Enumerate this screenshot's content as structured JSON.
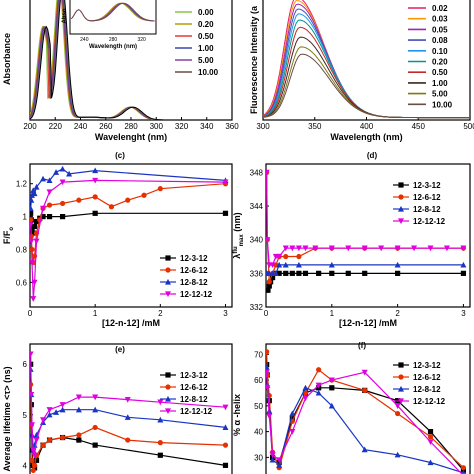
{
  "chart_data": [
    {
      "id": "a",
      "type": "line",
      "xlabel": "Wavelenght (nm)",
      "ylabel": "Absorbance",
      "xlim": [
        200,
        360
      ],
      "xticks": [
        200,
        220,
        240,
        260,
        280,
        300,
        320,
        340,
        360
      ],
      "ylim": [
        0,
        1.25
      ],
      "legend": [
        "0.00",
        "0.20",
        "0.50",
        "1.00",
        "5.00",
        "10.00"
      ],
      "legend_colors": [
        "#8bc34a",
        "#b0a000",
        "#e53935",
        "#3949ab",
        "#8e3fa0",
        "#6d4c41"
      ],
      "inset": {
        "ylabel": "Abso",
        "xlabel": "Wavelength (nm)",
        "xticks": [
          240,
          280,
          320
        ]
      },
      "series": [
        {
          "color": "#8bc34a",
          "shift": 0.0,
          "scale": 1.0
        },
        {
          "color": "#b0a000",
          "shift": 0.4,
          "scale": 1.0
        },
        {
          "color": "#e53935",
          "shift": 0.8,
          "scale": 1.0
        },
        {
          "color": "#3949ab",
          "shift": 1.2,
          "scale": 1.0
        },
        {
          "color": "#8e3fa0",
          "shift": 1.6,
          "scale": 1.0
        },
        {
          "color": "#6d4c41",
          "shift": 2.0,
          "scale": 1.0
        },
        {
          "color": "#607d8b",
          "shift": 2.4,
          "scale": 1.0
        },
        {
          "color": "#000000",
          "shift": 2.8,
          "scale": 1.0
        }
      ]
    },
    {
      "id": "b",
      "type": "line",
      "xlabel": "Wavelength (nm)",
      "ylabel": "Fluorescence Intensity (a",
      "xlim": [
        300,
        500
      ],
      "xticks": [
        300,
        350,
        400,
        450,
        500
      ],
      "ylim": [
        0,
        1.0
      ],
      "legend": [
        "0.02",
        "0.03",
        "0.05",
        "0.08",
        "0.10",
        "0.20",
        "0.50",
        "1.00",
        "5.00",
        "10.00"
      ],
      "legend_colors": [
        "#e91e63",
        "#ff9800",
        "#9c27b0",
        "#3f51b5",
        "#2196f3",
        "#009688",
        "#c62828",
        "#3e2723",
        "#827717",
        "#6d4c41"
      ],
      "series": [
        {
          "color": "#e91e63",
          "peak": 0.99
        },
        {
          "color": "#ff9800",
          "peak": 0.96
        },
        {
          "color": "#9c27b0",
          "peak": 0.93
        },
        {
          "color": "#3f51b5",
          "peak": 0.89
        },
        {
          "color": "#2196f3",
          "peak": 0.85
        },
        {
          "color": "#009688",
          "peak": 0.8
        },
        {
          "color": "#c62828",
          "peak": 0.74
        },
        {
          "color": "#3e2723",
          "peak": 0.66
        },
        {
          "color": "#827717",
          "peak": 0.58
        },
        {
          "color": "#6d4c41",
          "peak": 0.52
        }
      ]
    },
    {
      "id": "c",
      "type": "line",
      "tag": "(c)",
      "xlabel": "[12-n-12] /mM",
      "ylabel": "F/F",
      "ylabel_sub": "o",
      "xlim": [
        0,
        3.1
      ],
      "xticks": [
        0,
        1,
        2,
        3
      ],
      "ylim": [
        0.45,
        1.32
      ],
      "yticks": [
        0.6,
        0.8,
        1.0,
        1.2
      ],
      "series": [
        {
          "name": "12-3-12",
          "color": "#000000",
          "marker": "square",
          "x": [
            0.01,
            0.02,
            0.03,
            0.05,
            0.07,
            0.1,
            0.15,
            0.2,
            0.3,
            0.5,
            1.0,
            3.0
          ],
          "y": [
            1.02,
            0.98,
            0.93,
            0.9,
            0.94,
            0.97,
            0.99,
            1.0,
            1.0,
            1.0,
            1.02,
            1.02
          ]
        },
        {
          "name": "12-6-12",
          "color": "#e53000",
          "marker": "circle",
          "x": [
            0.01,
            0.02,
            0.03,
            0.05,
            0.07,
            0.1,
            0.15,
            0.2,
            0.3,
            0.5,
            0.75,
            1.0,
            1.25,
            1.5,
            1.75,
            2.0,
            3.0
          ],
          "y": [
            0.98,
            0.88,
            0.8,
            0.72,
            0.76,
            0.9,
            0.98,
            1.05,
            1.07,
            1.08,
            1.1,
            1.12,
            1.06,
            1.1,
            1.13,
            1.17,
            1.2
          ]
        },
        {
          "name": "12-8-12",
          "color": "#1a35c4",
          "marker": "triangle",
          "x": [
            0.01,
            0.02,
            0.03,
            0.05,
            0.07,
            0.1,
            0.2,
            0.3,
            0.4,
            0.5,
            0.6,
            1.0,
            3.0
          ],
          "y": [
            1.05,
            1.1,
            1.13,
            1.16,
            1.14,
            1.18,
            1.23,
            1.22,
            1.27,
            1.29,
            1.26,
            1.28,
            1.22
          ]
        },
        {
          "name": "12-12-12",
          "color": "#e000e0",
          "marker": "triangle-down",
          "x": [
            0.01,
            0.02,
            0.03,
            0.05,
            0.07,
            0.1,
            0.2,
            0.3,
            0.5,
            1.0,
            3.0
          ],
          "y": [
            0.95,
            0.85,
            0.72,
            0.5,
            0.6,
            0.85,
            1.05,
            1.15,
            1.21,
            1.22,
            1.21
          ]
        }
      ]
    },
    {
      "id": "d",
      "type": "line",
      "tag": "(d)",
      "xlabel": "[12-n-12] /mM",
      "ylabel": "λ",
      "ylabel_sup": "flu",
      "ylabel_sub": "max",
      "ylabel_unit": "(nm)",
      "xlim": [
        0,
        3.1
      ],
      "xticks": [
        0,
        1,
        2,
        3
      ],
      "ylim": [
        332,
        349
      ],
      "yticks": [
        332,
        336,
        340,
        344,
        348
      ],
      "series": [
        {
          "name": "12-3-12",
          "color": "#000000",
          "marker": "square",
          "x": [
            0.01,
            0.03,
            0.05,
            0.07,
            0.1,
            0.15,
            0.2,
            0.3,
            0.4,
            0.5,
            0.6,
            0.8,
            1.0,
            1.25,
            1.5,
            2.0,
            3.0
          ],
          "y": [
            334,
            334,
            334.5,
            335,
            335.5,
            336,
            336,
            336,
            336,
            336,
            336,
            336,
            336,
            336,
            336,
            336,
            336
          ]
        },
        {
          "name": "12-6-12",
          "color": "#e53000",
          "marker": "circle",
          "x": [
            0.01,
            0.02,
            0.05,
            0.1,
            0.15,
            0.2,
            0.3,
            0.5,
            0.75,
            1.0,
            1.5,
            2.0,
            3.0
          ],
          "y": [
            348,
            340,
            335,
            336,
            337,
            338,
            338,
            338,
            339,
            339,
            339,
            339,
            339
          ]
        },
        {
          "name": "12-8-12",
          "color": "#1a35c4",
          "marker": "triangle",
          "x": [
            0.01,
            0.03,
            0.05,
            0.1,
            0.15,
            0.2,
            0.3,
            0.5,
            1.0,
            2.0,
            3.0
          ],
          "y": [
            336,
            336,
            336,
            336,
            336,
            337,
            337,
            337,
            337,
            337,
            337
          ]
        },
        {
          "name": "12-12-12",
          "color": "#e000e0",
          "marker": "triangle-down",
          "x": [
            0.01,
            0.02,
            0.05,
            0.1,
            0.15,
            0.2,
            0.3,
            0.4,
            0.5,
            0.6,
            0.75,
            1.0,
            1.25,
            1.5,
            1.75,
            2.0,
            2.25,
            2.5,
            2.75,
            3.0
          ],
          "y": [
            348,
            340,
            337,
            337,
            338,
            338,
            339,
            339,
            339,
            339,
            339,
            339,
            339,
            339,
            339,
            339,
            339,
            339,
            339,
            339
          ]
        }
      ]
    },
    {
      "id": "e",
      "type": "line",
      "tag": "(e)",
      "xlabel": "",
      "ylabel": "Average lifetime <τ> (ns)",
      "xlim": [
        0,
        3.1
      ],
      "xticks": [
        0,
        1,
        2,
        3
      ],
      "ylim": [
        3.75,
        6.4
      ],
      "yticks": [
        4,
        5,
        6
      ],
      "series": [
        {
          "name": "12-3-12",
          "color": "#000000",
          "marker": "square",
          "x": [
            0.01,
            0.02,
            0.03,
            0.05,
            0.07,
            0.1,
            0.2,
            0.3,
            0.5,
            0.75,
            1.0,
            2.0,
            3.0
          ],
          "y": [
            6.0,
            5.2,
            4.3,
            4.0,
            3.95,
            4.1,
            4.4,
            4.5,
            4.55,
            4.5,
            4.4,
            4.2,
            4.0
          ]
        },
        {
          "name": "12-6-12",
          "color": "#e53000",
          "marker": "circle",
          "x": [
            0.01,
            0.02,
            0.03,
            0.05,
            0.07,
            0.1,
            0.2,
            0.3,
            0.5,
            0.75,
            1.0,
            1.5,
            2.0,
            3.0
          ],
          "y": [
            5.6,
            4.8,
            4.1,
            3.9,
            4.0,
            4.2,
            4.4,
            4.5,
            4.55,
            4.6,
            4.75,
            4.5,
            4.45,
            4.4
          ]
        },
        {
          "name": "12-8-12",
          "color": "#1a35c4",
          "marker": "triangle",
          "x": [
            0.01,
            0.02,
            0.03,
            0.05,
            0.07,
            0.1,
            0.2,
            0.3,
            0.4,
            0.5,
            0.75,
            1.0,
            1.5,
            2.0,
            3.0
          ],
          "y": [
            5.9,
            5.4,
            4.6,
            4.3,
            4.4,
            4.6,
            4.85,
            5.0,
            5.05,
            5.1,
            5.1,
            5.1,
            4.95,
            4.9,
            4.75
          ]
        },
        {
          "name": "12-12-12",
          "color": "#e000e0",
          "marker": "triangle-down",
          "x": [
            0.01,
            0.02,
            0.03,
            0.05,
            0.07,
            0.1,
            0.2,
            0.3,
            0.5,
            0.75,
            1.0,
            1.5,
            2.0,
            3.0
          ],
          "y": [
            6.2,
            5.4,
            4.8,
            4.3,
            4.2,
            4.5,
            4.9,
            5.1,
            5.2,
            5.35,
            5.35,
            5.3,
            5.25,
            5.15
          ]
        }
      ]
    },
    {
      "id": "f",
      "type": "line",
      "tag": "(f)",
      "xlabel": "",
      "ylabel": "% α -helix",
      "xlim": [
        0,
        3.1
      ],
      "xticks": [
        0,
        1,
        2,
        3
      ],
      "ylim": [
        22,
        74
      ],
      "yticks": [
        30,
        40,
        50,
        60,
        70
      ],
      "series": [
        {
          "name": "12-3-12",
          "color": "#000000",
          "marker": "square",
          "x": [
            0.01,
            0.02,
            0.05,
            0.1,
            0.2,
            0.4,
            0.6,
            0.8,
            1.0,
            1.5,
            2.0,
            2.5,
            3.0
          ],
          "y": [
            66,
            62,
            52,
            30,
            28,
            45,
            55,
            57,
            57,
            56,
            52,
            40,
            25
          ]
        },
        {
          "name": "12-6-12",
          "color": "#e53000",
          "marker": "circle",
          "x": [
            0.01,
            0.02,
            0.05,
            0.1,
            0.2,
            0.4,
            0.6,
            0.8,
            1.0,
            1.5,
            2.0,
            2.5,
            3.0
          ],
          "y": [
            71,
            62,
            54,
            32,
            26,
            44,
            55,
            64,
            60,
            56,
            47,
            38,
            26
          ]
        },
        {
          "name": "12-8-12",
          "color": "#1a35c4",
          "marker": "triangle",
          "x": [
            0.01,
            0.02,
            0.05,
            0.1,
            0.2,
            0.4,
            0.6,
            0.8,
            1.0,
            1.5,
            2.0,
            2.5,
            3.0
          ],
          "y": [
            65,
            58,
            48,
            29,
            27,
            47,
            57,
            55,
            50,
            33,
            31,
            28,
            24
          ]
        },
        {
          "name": "12-12-12",
          "color": "#e000e0",
          "marker": "triangle-down",
          "x": [
            0.01,
            0.02,
            0.05,
            0.1,
            0.2,
            0.4,
            0.6,
            0.8,
            1.0,
            1.5,
            2.0,
            2.5,
            3.0
          ],
          "y": [
            63,
            57,
            46,
            31,
            29,
            40,
            53,
            58,
            60,
            63,
            50,
            36,
            23
          ]
        }
      ]
    }
  ]
}
